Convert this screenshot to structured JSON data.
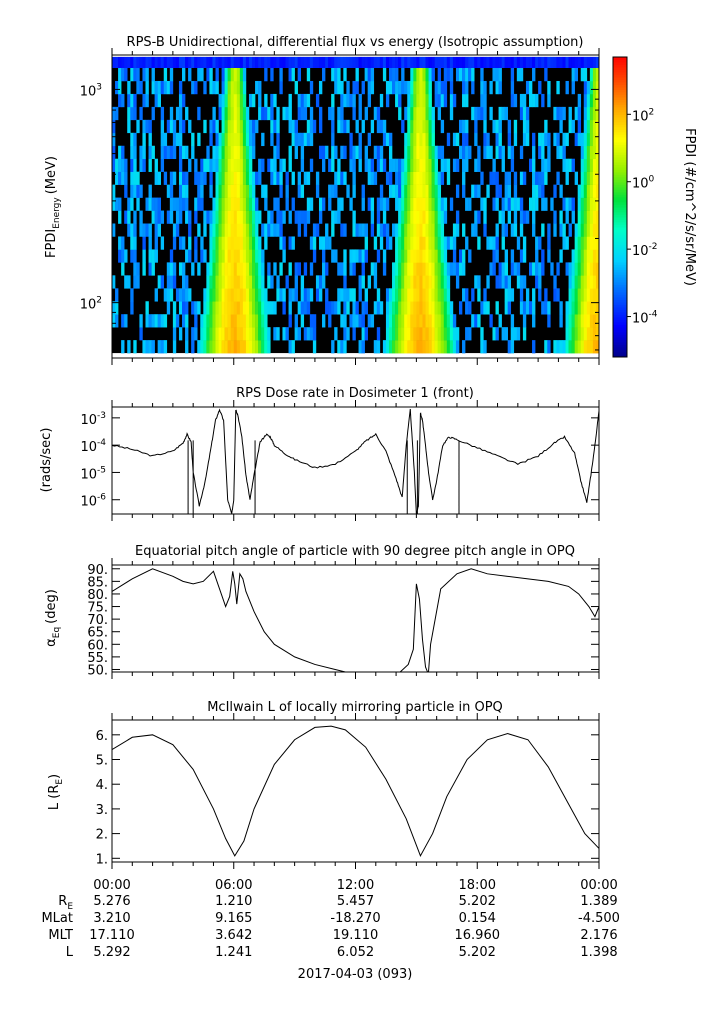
{
  "colors": {
    "axis": "#000000",
    "background": "#ffffff",
    "spectrogram_fill": "#000000",
    "colorbar": [
      "#0000a0",
      "#0000ff",
      "#00c8ff",
      "#00ffc0",
      "#00e000",
      "#c8f000",
      "#ffff00",
      "#ffb000",
      "#ff5000",
      "#ff0000"
    ]
  },
  "chart_data": [
    {
      "type": "heatmap",
      "title": "RPS-B  Unidirectional, differential flux vs energy (Isotropic assumption)",
      "ylabel_main": "FPDI",
      "ylabel_sub": "Energy",
      "ylabel_unit": "(MeV)",
      "yscale": "log",
      "ylim": [
        55,
        1450
      ],
      "yticks": [
        {
          "v": 100,
          "base": "10",
          "exp": "2"
        },
        {
          "v": 1000,
          "base": "10",
          "exp": "3"
        }
      ],
      "xlim_hours": [
        0,
        24
      ],
      "colorbar": {
        "label": "FPDI (#/cm^2/s/sr/MeV)",
        "scale": "log",
        "range_log10": [
          -5.2,
          3.7
        ],
        "ticks": [
          {
            "v": 2,
            "base": "10",
            "exp": "2"
          },
          {
            "v": 0,
            "base": "10",
            "exp": "0"
          },
          {
            "v": -2,
            "base": "10",
            "exp": "-2"
          },
          {
            "v": -4,
            "base": "10",
            "exp": "-4"
          }
        ]
      },
      "belt_passes_hours": [
        6.05,
        15.2
      ],
      "top_band_energy_mev": [
        1260,
        1420
      ],
      "top_band_value_log10": -4.0,
      "background_value_log10": -2.8,
      "peak_value_log10": 2.0
    },
    {
      "type": "line",
      "title": "RPS  Dose rate in Dosimeter 1 (front)",
      "ylabel": "(rads/sec)",
      "yscale": "log",
      "ylim": [
        3e-07,
        0.0025
      ],
      "yticks": [
        {
          "v": 1e-06,
          "base": "10",
          "exp": "-6"
        },
        {
          "v": 1e-05,
          "base": "10",
          "exp": "-5"
        },
        {
          "v": 0.0001,
          "base": "10",
          "exp": "-4"
        },
        {
          "v": 0.001,
          "base": "10",
          "exp": "-3"
        }
      ],
      "x_hours": [
        0,
        1,
        2,
        3,
        3.5,
        3.7,
        3.9,
        4.0,
        4.3,
        4.6,
        4.9,
        5.1,
        5.3,
        5.5,
        5.7,
        5.9,
        6.0,
        6.1,
        6.2,
        6.4,
        6.6,
        6.8,
        7.0,
        7.3,
        7.6,
        7.8,
        8.0,
        8.5,
        9,
        10,
        11,
        12,
        12.5,
        13,
        13.5,
        14,
        14.3,
        14.5,
        14.7,
        14.9,
        15.0,
        15.1,
        15.2,
        15.3,
        15.4,
        15.6,
        15.8,
        16.0,
        16.3,
        16.6,
        17,
        18,
        19,
        20,
        21,
        21.8,
        22.3,
        22.8,
        23.1,
        23.4,
        23.6,
        23.8,
        24
      ],
      "y_dose": [
        0.0001,
        7e-05,
        4e-05,
        6e-05,
        0.00012,
        0.00025,
        0.00013,
        1e-05,
        6e-07,
        5e-06,
        0.0001,
        0.0008,
        0.002,
        0.0008,
        1e-06,
        3e-07,
        1e-06,
        0.002,
        0.0013,
        0.0002,
        8e-06,
        1e-06,
        8e-06,
        0.00013,
        0.00025,
        0.0002,
        0.0001,
        5e-05,
        3e-05,
        1.5e-05,
        2e-05,
        6e-05,
        0.00014,
        0.00025,
        6e-05,
        6e-06,
        1.2e-06,
        0.0001,
        0.002,
        1e-05,
        3e-07,
        6e-07,
        0.0015,
        0.0008,
        0.0002,
        1e-05,
        1e-06,
        5e-06,
        0.0001,
        0.0002,
        0.00016,
        8e-05,
        4e-05,
        2e-05,
        4e-05,
        0.00012,
        0.0002,
        5e-05,
        5e-06,
        8e-07,
        8e-06,
        0.0001,
        0.0018
      ]
    },
    {
      "type": "line",
      "title": "Equatorial pitch angle of particle with 90 degree pitch angle in OPQ",
      "ylabel_main": "α",
      "ylabel_sub": "Eq",
      "ylabel_unit": "(deg)",
      "ylim": [
        49,
        91.5
      ],
      "yticks": [
        50,
        55,
        60,
        65,
        70,
        75,
        80,
        85,
        90
      ],
      "tick_labels": [
        "50.",
        "55.",
        "60.",
        "65.",
        "70.",
        "75.",
        "80.",
        "85.",
        "90."
      ],
      "x_hours": [
        0,
        1,
        2,
        3,
        3.5,
        4,
        4.5,
        5,
        5.3,
        5.6,
        5.8,
        5.95,
        6.05,
        6.15,
        6.3,
        6.45,
        6.6,
        7,
        7.5,
        8,
        9,
        10,
        11,
        11.5,
        12.2,
        12.8,
        13.4,
        14.2,
        14.6,
        14.85,
        15.0,
        15.15,
        15.3,
        15.45,
        15.55,
        15.6,
        15.7,
        16.2,
        17,
        17.7,
        18.5,
        19.5,
        20.5,
        21.5,
        22.5,
        23,
        23.5,
        23.8,
        24
      ],
      "y_deg": [
        81,
        86,
        90,
        87,
        85,
        84,
        85,
        89,
        82,
        75,
        79,
        89,
        84,
        76,
        88,
        86,
        81,
        73,
        65,
        60,
        55,
        52,
        50,
        49,
        49,
        48.6,
        48.6,
        49,
        52,
        58,
        84,
        78,
        62,
        51,
        49,
        49.3,
        60,
        82,
        88,
        90,
        88,
        87,
        86,
        85,
        83,
        80,
        75,
        71,
        75
      ]
    },
    {
      "type": "line",
      "title": "McIlwain L of locally mirroring particle in OPQ",
      "ylabel_main": "L (R",
      "ylabel_sub": "E",
      "ylabel_end": ")",
      "ylim": [
        0.85,
        6.6
      ],
      "yticks": [
        1,
        2,
        3,
        4,
        5,
        6
      ],
      "tick_labels": [
        "1.",
        "2.",
        "3.",
        "4.",
        "5.",
        "6."
      ],
      "x_hours": [
        0,
        1,
        2,
        3,
        4,
        5,
        5.6,
        6.05,
        6.5,
        7,
        8,
        9,
        10,
        10.8,
        11.5,
        12.5,
        13.5,
        14.5,
        15.2,
        15.8,
        16.5,
        17.5,
        18.5,
        19.5,
        20.5,
        21.5,
        22.5,
        23.3,
        24
      ],
      "y_L": [
        5.4,
        5.9,
        6.0,
        5.6,
        4.6,
        3.0,
        1.8,
        1.1,
        1.7,
        3.0,
        4.8,
        5.8,
        6.3,
        6.35,
        6.2,
        5.5,
        4.2,
        2.6,
        1.1,
        2.0,
        3.5,
        5.0,
        5.8,
        6.05,
        5.8,
        4.7,
        3.2,
        2.0,
        1.4
      ]
    }
  ],
  "xaxis": {
    "tick_labels": [
      "00:00",
      "06:00",
      "12:00",
      "18:00",
      "00:00"
    ],
    "row_labels": {
      "re_main": "R",
      "re_sub": "E",
      "mlat": "MLat",
      "mlt": "MLT",
      "l": "L"
    },
    "rows": {
      "re": [
        "5.276",
        "1.210",
        "5.457",
        "5.202",
        "1.389"
      ],
      "mlat": [
        "3.210",
        "9.165",
        "-18.270",
        "0.154",
        "-4.500"
      ],
      "mlt": [
        "17.110",
        "3.642",
        "19.110",
        "16.960",
        "2.176"
      ],
      "l": [
        "5.292",
        "1.241",
        "6.052",
        "5.202",
        "1.398"
      ]
    },
    "date_label": "2017-04-03 (093)"
  }
}
